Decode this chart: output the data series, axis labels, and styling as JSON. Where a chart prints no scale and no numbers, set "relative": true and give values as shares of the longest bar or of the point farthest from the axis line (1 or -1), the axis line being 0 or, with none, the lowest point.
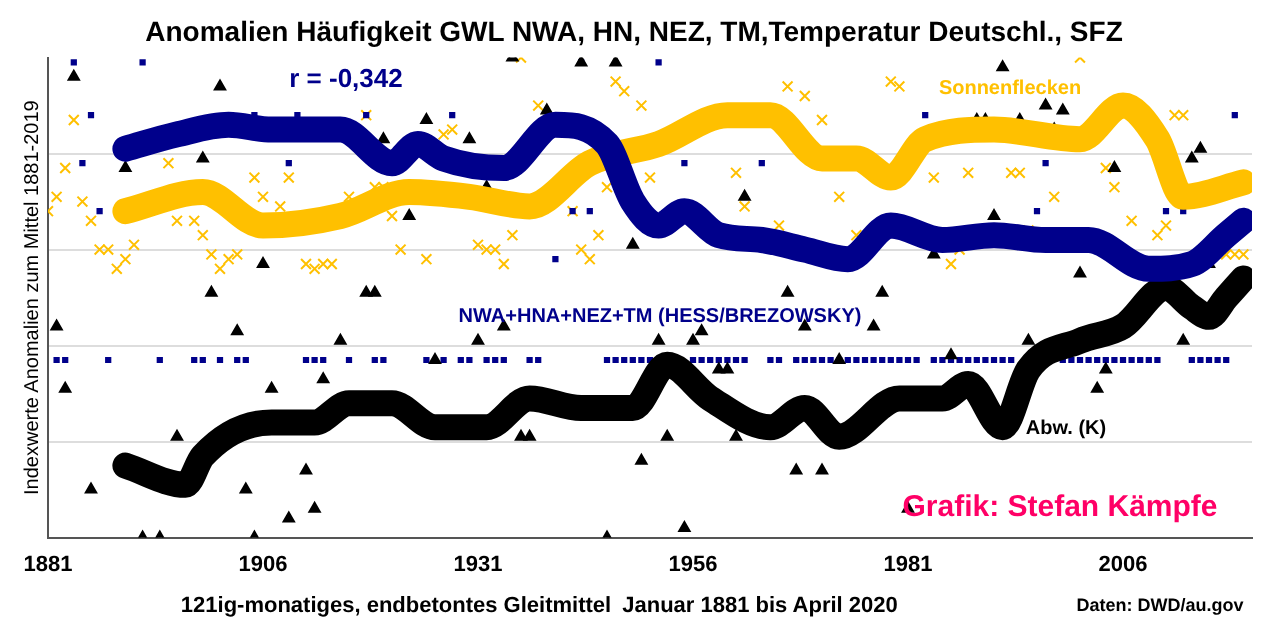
{
  "chart_data": {
    "type": "line",
    "title": "Anomalien Häufigkeit GWL NWA, HN, NEZ, TM,Temperatur Deutschl., SFZ",
    "ylabel": "Indexwerte Anomalien zum Mittel 1881-2019",
    "relative": true,
    "xlim": [
      1881,
      2021
    ],
    "xticks": [
      1881,
      1906,
      1931,
      1956,
      1981,
      2006
    ],
    "grid": "y",
    "legend": false,
    "annotations": [
      "r = -0,342",
      "Grafik: Stefan Kämpfe",
      "121ig-monatiges, endbetontes Gleitmittel",
      "Januar 1881 bis April 2020",
      "Daten: DWD/au.gov"
    ],
    "series": [
      {
        "type": "scatter",
        "marker": "triangle",
        "color": "#000000",
        "x": [
          1882,
          1883,
          1884,
          1886,
          1890,
          1892,
          1894,
          1896,
          1899,
          1900,
          1901,
          1903,
          1904,
          1905,
          1906,
          1907,
          1909,
          1911,
          1912,
          1913,
          1915,
          1918,
          1919,
          1920,
          1923,
          1925,
          1926,
          1930,
          1931,
          1932,
          1934,
          1935,
          1936,
          1937,
          1939,
          1943,
          1946,
          1947,
          1949,
          1950,
          1952,
          1953,
          1955,
          1956,
          1957,
          1959,
          1960,
          1961,
          1962,
          1967,
          1968,
          1969,
          1971,
          1973,
          1977,
          1978,
          1981,
          1984,
          1986,
          1989,
          1990,
          1991,
          1992,
          1994,
          1995,
          1997,
          1998,
          1999,
          2001,
          2003,
          2004,
          2005,
          2013,
          2014,
          2015,
          2016
        ],
        "values": [
          0.44,
          0.31,
          0.96,
          0.1,
          0.77,
          0,
          0,
          0.21,
          0.79,
          0.51,
          0.94,
          0.43,
          0.1,
          0,
          0.57,
          0.31,
          0.04,
          0.14,
          0.06,
          0.33,
          0.41,
          0.51,
          0.51,
          0.83,
          0.67,
          0.87,
          0.37,
          0.83,
          0.41,
          0.73,
          0.44,
          1,
          0.21,
          0.21,
          0.89,
          0.99,
          0,
          0.99,
          0.61,
          0.16,
          0.41,
          0.21,
          0.02,
          0.41,
          0.43,
          0.35,
          0.35,
          0.21,
          0.71,
          0.51,
          0.14,
          0.44,
          0.14,
          0.37,
          0.44,
          0.51,
          0.06,
          0.59,
          0.38,
          0.87,
          0.87,
          0.67,
          0.98,
          0.87,
          0.41,
          0.9,
          0.85,
          0.89,
          0.55,
          0.31,
          0.35,
          0.77,
          0.41,
          0.79,
          0.81,
          0.57
        ]
      },
      {
        "type": "scatter",
        "marker": "square",
        "color": "#00008b",
        "x": [
          1882,
          1883,
          1884,
          1885,
          1886,
          1887,
          1888,
          1892,
          1894,
          1898,
          1899,
          1901,
          1903,
          1904,
          1905,
          1909,
          1910,
          1911,
          1912,
          1913,
          1916,
          1918,
          1919,
          1920,
          1925,
          1927,
          1928,
          1929,
          1930,
          1932,
          1933,
          1934,
          1937,
          1938,
          1940,
          1942,
          1943,
          1944,
          1946,
          1947,
          1948,
          1949,
          1950,
          1951,
          1952,
          1955,
          1956,
          1957,
          1958,
          1959,
          1960,
          1961,
          1962,
          1964,
          1965,
          1966,
          1968,
          1969,
          1970,
          1971,
          1972,
          1973,
          1974,
          1975,
          1976,
          1977,
          1978,
          1979,
          1980,
          1981,
          1982,
          1983,
          1984,
          1985,
          1986,
          1987,
          1988,
          1989,
          1990,
          1991,
          1992,
          1993,
          1996,
          1997,
          1999,
          2000,
          2001,
          2002,
          2003,
          2004,
          2005,
          2006,
          2007,
          2008,
          2009,
          2010,
          2011,
          2013,
          2014,
          2015,
          2016,
          2017,
          2018,
          2019
        ],
        "values": [
          0.37,
          0.37,
          0.99,
          0.78,
          0.88,
          0.68,
          0.37,
          0.99,
          0.37,
          0.37,
          0.37,
          0.37,
          0.37,
          0.37,
          0.88,
          0.78,
          0.88,
          0.37,
          0.37,
          0.37,
          0.37,
          0.88,
          0.37,
          0.37,
          0.37,
          0.37,
          0.88,
          0.37,
          0.37,
          0.37,
          0.37,
          0.37,
          0.37,
          0.37,
          0.58,
          0.68,
          0.99,
          0.68,
          0.37,
          0.37,
          0.37,
          0.37,
          0.37,
          0.37,
          0.99,
          0.78,
          0.37,
          0.37,
          0.37,
          0.37,
          0.37,
          0.37,
          0.37,
          0.78,
          0.37,
          0.37,
          0.37,
          0.37,
          0.37,
          0.37,
          0.37,
          0.37,
          0.37,
          0.37,
          0.37,
          0.37,
          0.37,
          0.37,
          0.37,
          0.37,
          0.37,
          0.88,
          0.37,
          0.37,
          0.37,
          0.37,
          0.37,
          0.37,
          0.37,
          0.37,
          0.37,
          0.37,
          0.68,
          0.78,
          0.37,
          0.37,
          0.37,
          0.37,
          0.37,
          0.37,
          0.37,
          0.37,
          0.37,
          0.37,
          0.37,
          0.37,
          0.68,
          0.68,
          0.37,
          0.37,
          0.37,
          0.37,
          0.37,
          0.88
        ]
      },
      {
        "type": "scatter",
        "marker": "cross",
        "color": "#ffc000",
        "x": [
          1881,
          1882,
          1883,
          1884,
          1885,
          1886,
          1887,
          1888,
          1889,
          1890,
          1891,
          1895,
          1896,
          1898,
          1899,
          1900,
          1901,
          1902,
          1903,
          1905,
          1906,
          1908,
          1909,
          1911,
          1912,
          1913,
          1914,
          1916,
          1918,
          1919,
          1920,
          1921,
          1922,
          1925,
          1927,
          1928,
          1931,
          1932,
          1933,
          1934,
          1935,
          1936,
          1938,
          1942,
          1943,
          1944,
          1945,
          1946,
          1947,
          1948,
          1950,
          1951,
          1961,
          1962,
          1966,
          1967,
          1969,
          1971,
          1973,
          1975,
          1979,
          1980,
          1984,
          1986,
          1987,
          1988,
          1993,
          1994,
          1995,
          1998,
          2001,
          2004,
          2005,
          2007,
          2010,
          2011,
          2012,
          2013,
          2018,
          2019,
          2020
        ],
        "values": [
          0.68,
          0.71,
          0.77,
          0.87,
          0.7,
          0.66,
          0.6,
          0.6,
          0.56,
          0.58,
          0.61,
          0.78,
          0.66,
          0.66,
          0.63,
          0.59,
          0.56,
          0.58,
          0.59,
          0.75,
          0.71,
          0.69,
          0.75,
          0.57,
          0.56,
          0.57,
          0.57,
          0.71,
          0.88,
          0.73,
          0.73,
          0.67,
          0.6,
          0.58,
          0.84,
          0.85,
          0.61,
          0.6,
          0.6,
          0.57,
          0.63,
          1,
          0.9,
          0.68,
          0.6,
          0.58,
          0.63,
          0.73,
          0.95,
          0.93,
          0.9,
          0.75,
          0.76,
          0.69,
          0.65,
          0.94,
          0.92,
          0.87,
          0.71,
          0.63,
          0.95,
          0.94,
          0.75,
          0.57,
          0.6,
          0.76,
          0.76,
          0.76,
          0.64,
          0.71,
          1,
          0.77,
          0.73,
          0.66,
          0.63,
          0.65,
          0.88,
          0.88,
          0.59,
          0.59,
          0.59
        ]
      },
      {
        "type": "line",
        "name": "NWA+HNA+NEZ+TM (HESS/BREZOWSKY)",
        "color": "#00008b",
        "x": [
          1890,
          1896,
          1902,
          1907,
          1915,
          1921,
          1924,
          1927,
          1934,
          1940,
          1946,
          1949,
          1952,
          1955,
          1959,
          1964,
          1969,
          1974,
          1979,
          1985,
          1991,
          1997,
          2002,
          2009,
          2014,
          2018,
          2020
        ],
        "values": [
          0.81,
          0.84,
          0.86,
          0.85,
          0.85,
          0.78,
          0.82,
          0.79,
          0.77,
          0.86,
          0.82,
          0.7,
          0.65,
          0.68,
          0.63,
          0.62,
          0.6,
          0.58,
          0.65,
          0.62,
          0.63,
          0.62,
          0.62,
          0.56,
          0.57,
          0.63,
          0.66
        ]
      },
      {
        "type": "line",
        "name": "Sonnenflecken",
        "color": "#ffc000",
        "x": [
          1890,
          1899,
          1906,
          1915,
          1923,
          1930,
          1937,
          1944,
          1952,
          1960,
          1965,
          1971,
          1975,
          1979,
          1983,
          1991,
          2001,
          2006,
          2010,
          2013,
          2020
        ],
        "values": [
          0.68,
          0.72,
          0.65,
          0.67,
          0.72,
          0.71,
          0.69,
          0.78,
          0.82,
          0.88,
          0.88,
          0.79,
          0.79,
          0.75,
          0.83,
          0.85,
          0.83,
          0.9,
          0.83,
          0.71,
          0.74
        ]
      },
      {
        "type": "line",
        "name": "Abw. (K)",
        "color": "#000000",
        "x": [
          1890,
          1897,
          1899,
          1907,
          1912,
          1916,
          1921,
          1926,
          1932,
          1937,
          1943,
          1949,
          1953,
          1958,
          1965,
          1969,
          1973,
          1980,
          1985,
          1988,
          1992,
          1995,
          2001,
          2006,
          2011,
          2014,
          2016,
          2018,
          2020
        ],
        "values": [
          0.15,
          0.11,
          0.17,
          0.24,
          0.24,
          0.28,
          0.28,
          0.23,
          0.23,
          0.29,
          0.27,
          0.27,
          0.36,
          0.29,
          0.23,
          0.27,
          0.21,
          0.29,
          0.29,
          0.32,
          0.23,
          0.35,
          0.41,
          0.44,
          0.52,
          0.48,
          0.46,
          0.5,
          0.54
        ]
      }
    ]
  }
}
